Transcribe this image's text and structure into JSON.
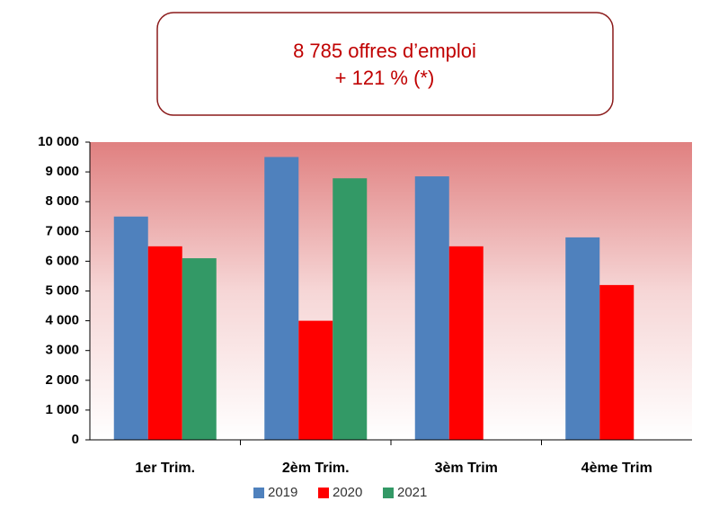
{
  "chart_data": {
    "type": "bar",
    "annotation": [
      "8 785 offres d’emploi",
      "+ 121   % (*)"
    ],
    "categories": [
      "1er Trim.",
      "2èm Trim.",
      "3èm Trim",
      "4ème Trim"
    ],
    "series": [
      {
        "name": "2019",
        "color": "#4f81bd",
        "values": [
          7500,
          9500,
          8850,
          6800
        ]
      },
      {
        "name": "2020",
        "color": "#ff0000",
        "values": [
          6500,
          4000,
          6500,
          5200
        ]
      },
      {
        "name": "2021",
        "color": "#339966",
        "values": [
          6100,
          8785,
          null,
          null
        ]
      }
    ],
    "ylim": [
      0,
      10000
    ],
    "yticks": [
      0,
      {
        "value": 1000,
        "label": "1 000"
      },
      {
        "value": 2000,
        "label": "2 000"
      },
      {
        "value": 3000,
        "label": "3 000"
      },
      {
        "value": 4000,
        "label": "4 000"
      },
      {
        "value": 5000,
        "label": "5 000"
      },
      {
        "value": 6000,
        "label": "6 000"
      },
      {
        "value": 7000,
        "label": "7 000"
      },
      {
        "value": 8000,
        "label": "8 000"
      },
      {
        "value": 9000,
        "label": "9 000"
      },
      {
        "value": 10000,
        "label": "10 000"
      }
    ],
    "grid": false,
    "legend": "bottom"
  }
}
